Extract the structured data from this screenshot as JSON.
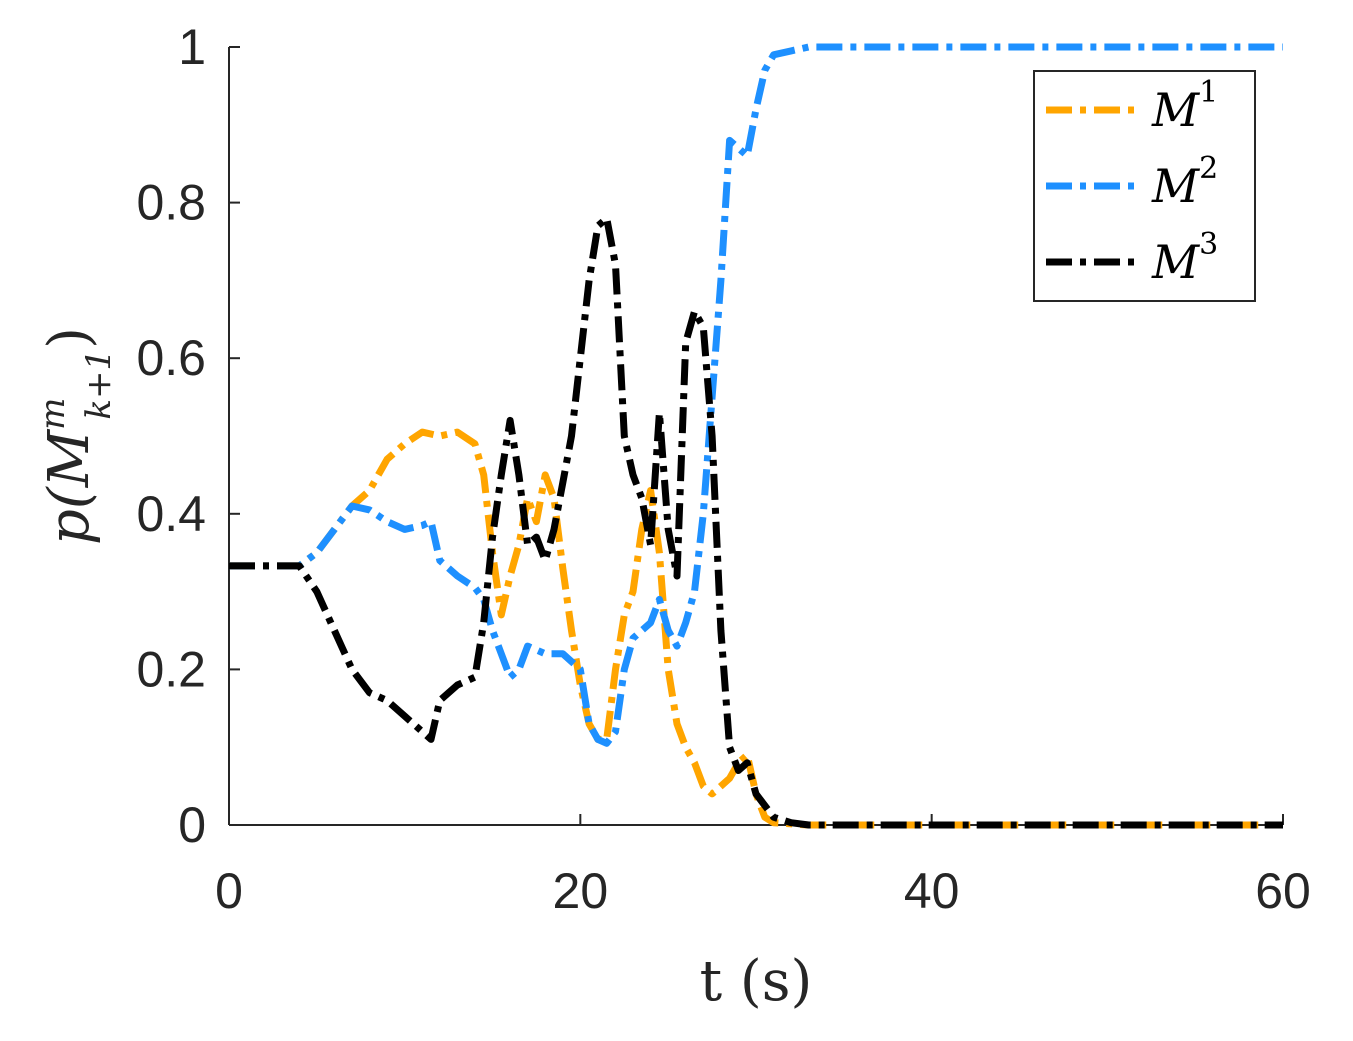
{
  "chart_data": {
    "type": "line",
    "title": "",
    "xlabel": "t (s)",
    "ylabel": {
      "base": "p(",
      "symbol": "M",
      "sup": "m",
      "sub": "k+1",
      "close": ")"
    },
    "xlim": [
      0,
      60
    ],
    "ylim": [
      0,
      1
    ],
    "xticks": [
      "0",
      "20",
      "40",
      "60"
    ],
    "yticks": [
      "0",
      "0.2",
      "0.4",
      "0.6",
      "0.8",
      "1"
    ],
    "grid": false,
    "legend_position": "top-right",
    "series": [
      {
        "name": "M",
        "sup": "1",
        "color": "#FFA500",
        "points": [
          [
            0,
            0.333
          ],
          [
            4,
            0.333
          ],
          [
            5,
            0.35
          ],
          [
            6,
            0.38
          ],
          [
            7,
            0.41
          ],
          [
            8,
            0.43
          ],
          [
            9,
            0.47
          ],
          [
            10,
            0.49
          ],
          [
            11,
            0.505
          ],
          [
            12,
            0.5
          ],
          [
            13,
            0.505
          ],
          [
            14,
            0.49
          ],
          [
            14.5,
            0.45
          ],
          [
            15,
            0.35
          ],
          [
            15.5,
            0.27
          ],
          [
            16,
            0.32
          ],
          [
            16.5,
            0.36
          ],
          [
            17,
            0.42
          ],
          [
            17.5,
            0.39
          ],
          [
            18,
            0.45
          ],
          [
            18.5,
            0.42
          ],
          [
            19,
            0.33
          ],
          [
            19.5,
            0.25
          ],
          [
            20,
            0.18
          ],
          [
            20.5,
            0.13
          ],
          [
            21,
            0.11
          ],
          [
            21.5,
            0.11
          ],
          [
            22,
            0.2
          ],
          [
            22.5,
            0.27
          ],
          [
            23,
            0.3
          ],
          [
            23.5,
            0.38
          ],
          [
            24,
            0.43
          ],
          [
            24.5,
            0.35
          ],
          [
            25,
            0.2
          ],
          [
            25.5,
            0.13
          ],
          [
            26,
            0.1
          ],
          [
            26.5,
            0.08
          ],
          [
            27,
            0.05
          ],
          [
            27.5,
            0.04
          ],
          [
            28,
            0.05
          ],
          [
            28.5,
            0.06
          ],
          [
            29,
            0.08
          ],
          [
            29.5,
            0.09
          ],
          [
            30,
            0.04
          ],
          [
            30.5,
            0.01
          ],
          [
            31,
            0.003
          ],
          [
            33,
            0.0
          ],
          [
            60,
            0.0
          ]
        ]
      },
      {
        "name": "M",
        "sup": "2",
        "color": "#1E90FF",
        "points": [
          [
            0,
            0.333
          ],
          [
            4,
            0.333
          ],
          [
            5,
            0.35
          ],
          [
            6,
            0.38
          ],
          [
            7,
            0.41
          ],
          [
            8,
            0.405
          ],
          [
            9,
            0.39
          ],
          [
            10,
            0.38
          ],
          [
            11,
            0.385
          ],
          [
            11.5,
            0.39
          ],
          [
            12,
            0.34
          ],
          [
            13,
            0.32
          ],
          [
            14,
            0.305
          ],
          [
            14.5,
            0.29
          ],
          [
            15,
            0.25
          ],
          [
            15.5,
            0.22
          ],
          [
            16,
            0.19
          ],
          [
            16.5,
            0.2
          ],
          [
            17,
            0.23
          ],
          [
            18,
            0.22
          ],
          [
            19,
            0.22
          ],
          [
            20,
            0.2
          ],
          [
            20.5,
            0.13
          ],
          [
            21,
            0.11
          ],
          [
            21.5,
            0.105
          ],
          [
            22,
            0.12
          ],
          [
            22.5,
            0.2
          ],
          [
            23,
            0.24
          ],
          [
            23.5,
            0.25
          ],
          [
            24,
            0.26
          ],
          [
            24.5,
            0.29
          ],
          [
            25,
            0.25
          ],
          [
            25.5,
            0.23
          ],
          [
            26,
            0.26
          ],
          [
            26.5,
            0.3
          ],
          [
            27,
            0.4
          ],
          [
            27.5,
            0.55
          ],
          [
            28,
            0.7
          ],
          [
            28.5,
            0.88
          ],
          [
            29,
            0.87
          ],
          [
            29.5,
            0.86
          ],
          [
            30,
            0.92
          ],
          [
            30.5,
            0.97
          ],
          [
            31,
            0.99
          ],
          [
            32,
            0.995
          ],
          [
            33,
            1.0
          ],
          [
            60,
            1.0
          ]
        ]
      },
      {
        "name": "M",
        "sup": "3",
        "color": "#000000",
        "points": [
          [
            0,
            0.333
          ],
          [
            4,
            0.333
          ],
          [
            5,
            0.3
          ],
          [
            6,
            0.25
          ],
          [
            7,
            0.2
          ],
          [
            8,
            0.17
          ],
          [
            9,
            0.16
          ],
          [
            10,
            0.14
          ],
          [
            11,
            0.12
          ],
          [
            11.5,
            0.11
          ],
          [
            12,
            0.16
          ],
          [
            13,
            0.18
          ],
          [
            14,
            0.19
          ],
          [
            14.5,
            0.26
          ],
          [
            15,
            0.37
          ],
          [
            15.5,
            0.45
          ],
          [
            16,
            0.52
          ],
          [
            16.5,
            0.45
          ],
          [
            17,
            0.36
          ],
          [
            17.5,
            0.37
          ],
          [
            18,
            0.34
          ],
          [
            18.5,
            0.38
          ],
          [
            19,
            0.44
          ],
          [
            19.5,
            0.5
          ],
          [
            20,
            0.6
          ],
          [
            20.5,
            0.7
          ],
          [
            21,
            0.77
          ],
          [
            21.5,
            0.78
          ],
          [
            22,
            0.72
          ],
          [
            22.5,
            0.5
          ],
          [
            23,
            0.45
          ],
          [
            23.5,
            0.42
          ],
          [
            24,
            0.36
          ],
          [
            24.5,
            0.53
          ],
          [
            25,
            0.38
          ],
          [
            25.5,
            0.32
          ],
          [
            26,
            0.62
          ],
          [
            26.5,
            0.66
          ],
          [
            27,
            0.64
          ],
          [
            27.5,
            0.5
          ],
          [
            28,
            0.25
          ],
          [
            28.5,
            0.1
          ],
          [
            29,
            0.07
          ],
          [
            29.5,
            0.08
          ],
          [
            30,
            0.04
          ],
          [
            31,
            0.01
          ],
          [
            32,
            0.003
          ],
          [
            33,
            0.0
          ],
          [
            60,
            0.0
          ]
        ]
      }
    ]
  }
}
